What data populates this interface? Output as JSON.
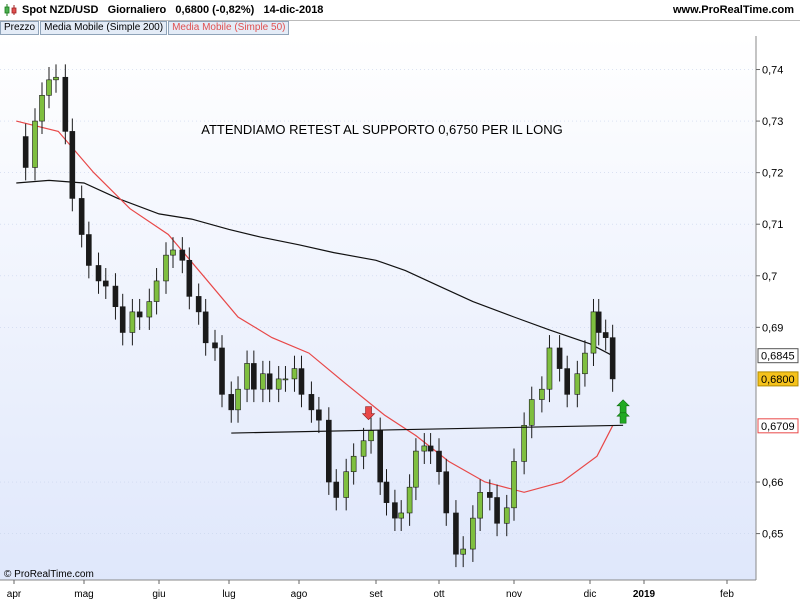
{
  "header": {
    "ticker": "Spot NZD/USD",
    "timeframe": "Giornaliero",
    "last_price": "0,6800",
    "change": "(-0,82%)",
    "date": "14-dic-2018",
    "site": "www.ProRealTime.com"
  },
  "legend": {
    "price_label": "Prezzo",
    "ma200_label": "Media Mobile (Simple 200)",
    "ma50_label": "Media Mobile (Simple 50)"
  },
  "annotation": "ATTENDIAMO RETEST AL SUPPORTO 0,6750 PER IL LONG",
  "watermark": "© ProRealTime.com",
  "colors": {
    "ma200": "#111111",
    "ma50": "#e84848",
    "candle_up": "#7fbf3f",
    "candle_down": "#1a1a1a",
    "support_line": "#111111",
    "arrow_down": "#e84848",
    "arrow_up": "#22aa22",
    "price_box": "#f5c21b"
  },
  "chart_data": {
    "type": "candlestick",
    "y_axis": {
      "range": [
        0.641,
        0.7465
      ],
      "ticks": [
        "0,74",
        "0,73",
        "0,72",
        "0,71",
        "0,7",
        "0,69",
        "0,6845",
        "0,6800",
        "0,6709",
        "0,66",
        "0,65"
      ]
    },
    "x_axis": {
      "labels": [
        "apr",
        "mag",
        "giu",
        "lug",
        "ago",
        "set",
        "ott",
        "nov",
        "dic",
        "2019",
        "feb"
      ]
    },
    "price_series_approx": [
      [
        "2018-04-02",
        0.727
      ],
      [
        "2018-04-06",
        0.721
      ],
      [
        "2018-04-10",
        0.73
      ],
      [
        "2018-04-13",
        0.735
      ],
      [
        "2018-04-16",
        0.738
      ],
      [
        "2018-04-19",
        0.7385
      ],
      [
        "2018-04-23",
        0.728
      ],
      [
        "2018-04-26",
        0.715
      ],
      [
        "2018-04-30",
        0.708
      ],
      [
        "2018-05-03",
        0.702
      ],
      [
        "2018-05-07",
        0.699
      ],
      [
        "2018-05-10",
        0.698
      ],
      [
        "2018-05-14",
        0.694
      ],
      [
        "2018-05-17",
        0.689
      ],
      [
        "2018-05-21",
        0.693
      ],
      [
        "2018-05-24",
        0.692
      ],
      [
        "2018-05-28",
        0.695
      ],
      [
        "2018-05-31",
        0.699
      ],
      [
        "2018-06-04",
        0.704
      ],
      [
        "2018-06-07",
        0.705
      ],
      [
        "2018-06-11",
        0.703
      ],
      [
        "2018-06-14",
        0.696
      ],
      [
        "2018-06-18",
        0.693
      ],
      [
        "2018-06-21",
        0.687
      ],
      [
        "2018-06-25",
        0.686
      ],
      [
        "2018-06-28",
        0.677
      ],
      [
        "2018-07-02",
        0.674
      ],
      [
        "2018-07-05",
        0.678
      ],
      [
        "2018-07-09",
        0.683
      ],
      [
        "2018-07-12",
        0.678
      ],
      [
        "2018-07-16",
        0.681
      ],
      [
        "2018-07-19",
        0.678
      ],
      [
        "2018-07-23",
        0.68
      ],
      [
        "2018-07-26",
        0.68
      ],
      [
        "2018-07-30",
        0.682
      ],
      [
        "2018-08-02",
        0.677
      ],
      [
        "2018-08-06",
        0.674
      ],
      [
        "2018-08-09",
        0.672
      ],
      [
        "2018-08-13",
        0.66
      ],
      [
        "2018-08-16",
        0.657
      ],
      [
        "2018-08-20",
        0.662
      ],
      [
        "2018-08-23",
        0.665
      ],
      [
        "2018-08-27",
        0.668
      ],
      [
        "2018-08-30",
        0.67
      ],
      [
        "2018-09-03",
        0.66
      ],
      [
        "2018-09-06",
        0.656
      ],
      [
        "2018-09-10",
        0.653
      ],
      [
        "2018-09-13",
        0.654
      ],
      [
        "2018-09-17",
        0.659
      ],
      [
        "2018-09-20",
        0.666
      ],
      [
        "2018-09-24",
        0.667
      ],
      [
        "2018-09-27",
        0.666
      ],
      [
        "2018-10-01",
        0.662
      ],
      [
        "2018-10-04",
        0.654
      ],
      [
        "2018-10-08",
        0.646
      ],
      [
        "2018-10-11",
        0.647
      ],
      [
        "2018-10-15",
        0.653
      ],
      [
        "2018-10-18",
        0.658
      ],
      [
        "2018-10-22",
        0.657
      ],
      [
        "2018-10-25",
        0.652
      ],
      [
        "2018-10-29",
        0.655
      ],
      [
        "2018-11-01",
        0.664
      ],
      [
        "2018-11-05",
        0.671
      ],
      [
        "2018-11-08",
        0.676
      ],
      [
        "2018-11-12",
        0.678
      ],
      [
        "2018-11-15",
        0.686
      ],
      [
        "2018-11-19",
        0.682
      ],
      [
        "2018-11-22",
        0.677
      ],
      [
        "2018-11-26",
        0.681
      ],
      [
        "2018-11-29",
        0.685
      ],
      [
        "2018-12-03",
        0.693
      ],
      [
        "2018-12-06",
        0.689
      ],
      [
        "2018-12-10",
        0.688
      ],
      [
        "2018-12-14",
        0.68
      ]
    ],
    "ma200_approx": [
      [
        "2018-04-02",
        0.718
      ],
      [
        "2018-04-16",
        0.7185
      ],
      [
        "2018-05-01",
        0.718
      ],
      [
        "2018-05-15",
        0.715
      ],
      [
        "2018-06-01",
        0.712
      ],
      [
        "2018-06-15",
        0.711
      ],
      [
        "2018-07-01",
        0.709
      ],
      [
        "2018-07-15",
        0.7075
      ],
      [
        "2018-08-01",
        0.706
      ],
      [
        "2018-08-15",
        0.7045
      ],
      [
        "2018-09-01",
        0.703
      ],
      [
        "2018-09-15",
        0.701
      ],
      [
        "2018-10-01",
        0.698
      ],
      [
        "2018-10-15",
        0.695
      ],
      [
        "2018-11-01",
        0.692
      ],
      [
        "2018-11-15",
        0.6895
      ],
      [
        "2018-12-01",
        0.6868
      ],
      [
        "2018-12-14",
        0.6845
      ]
    ],
    "ma50_approx": [
      [
        "2018-04-02",
        0.73
      ],
      [
        "2018-04-20",
        0.728
      ],
      [
        "2018-05-05",
        0.72
      ],
      [
        "2018-05-20",
        0.713
      ],
      [
        "2018-06-05",
        0.708
      ],
      [
        "2018-06-20",
        0.7
      ],
      [
        "2018-07-05",
        0.692
      ],
      [
        "2018-07-20",
        0.688
      ],
      [
        "2018-08-05",
        0.685
      ],
      [
        "2018-08-20",
        0.679
      ],
      [
        "2018-09-05",
        0.673
      ],
      [
        "2018-09-20",
        0.669
      ],
      [
        "2018-10-05",
        0.664
      ],
      [
        "2018-10-20",
        0.66
      ],
      [
        "2018-11-05",
        0.658
      ],
      [
        "2018-11-20",
        0.66
      ],
      [
        "2018-12-05",
        0.665
      ],
      [
        "2018-12-14",
        0.6709
      ]
    ],
    "support_line": {
      "from": [
        "2018-07-02",
        0.6695
      ],
      "to": [
        "2018-12-20",
        0.671
      ]
    },
    "down_arrow": [
      "2018-08-29",
      0.6715
    ],
    "up_arrows": [
      [
        "2018-12-20",
        0.672
      ],
      [
        "2018-12-20",
        0.674
      ]
    ],
    "price_marks": [
      {
        "label": "0,6845",
        "value": 0.6845
      },
      {
        "label": "0,6800",
        "value": 0.68
      },
      {
        "label": "0,6709",
        "value": 0.6709
      }
    ]
  }
}
